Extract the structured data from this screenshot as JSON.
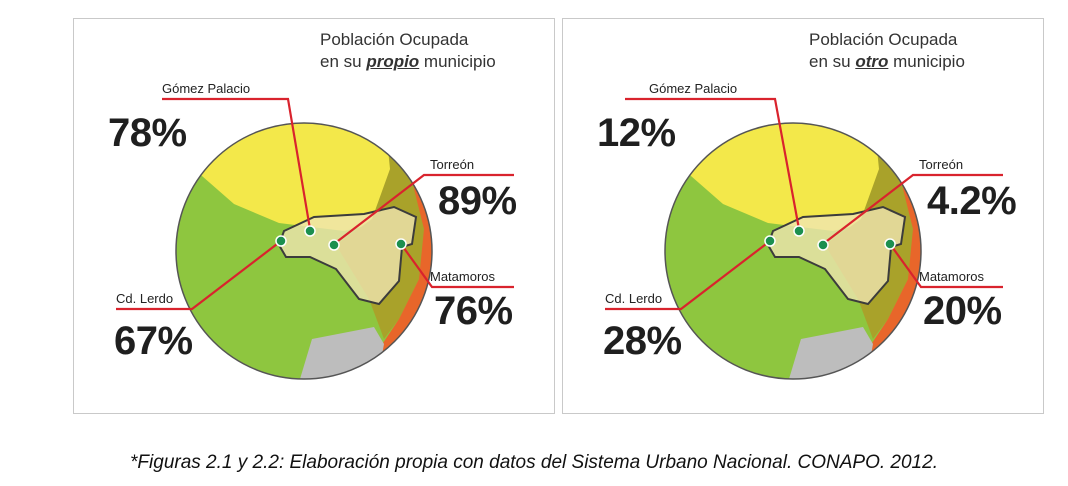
{
  "figures": [
    {
      "title_line1": "Población Ocupada",
      "title_pre": "en su ",
      "title_emph": "propio",
      "title_post": " municipio",
      "gomez": {
        "name": "Gómez Palacio",
        "value": "78%"
      },
      "torreon": {
        "name": "Torreón",
        "value": "89%"
      },
      "matamoros": {
        "name": "Matamoros",
        "value": "76%"
      },
      "lerdo": {
        "name": "Cd. Lerdo",
        "value": "67%"
      }
    },
    {
      "title_line1": "Población Ocupada",
      "title_pre": "en su ",
      "title_emph": "otro",
      "title_post": " municipio",
      "gomez": {
        "name": "Gómez Palacio",
        "value": "12%"
      },
      "torreon": {
        "name": "Torreón",
        "value": "4.2%"
      },
      "matamoros": {
        "name": "Matamoros",
        "value": "20%"
      },
      "lerdo": {
        "name": "Cd. Lerdo",
        "value": "28%"
      }
    }
  ],
  "caption": "*Figuras 2.1 y 2.2: Elaboración propia con datos del Sistema Urbano Nacional. CONAPO. 2012.",
  "colors": {
    "gomez_palacio": "#f3e84a",
    "cd_lerdo": "#8ec63f",
    "torreon": "#a9a22a",
    "matamoros": "#e8662a",
    "leader_line": "#d9232d",
    "urban_area": "#efe5b0"
  }
}
